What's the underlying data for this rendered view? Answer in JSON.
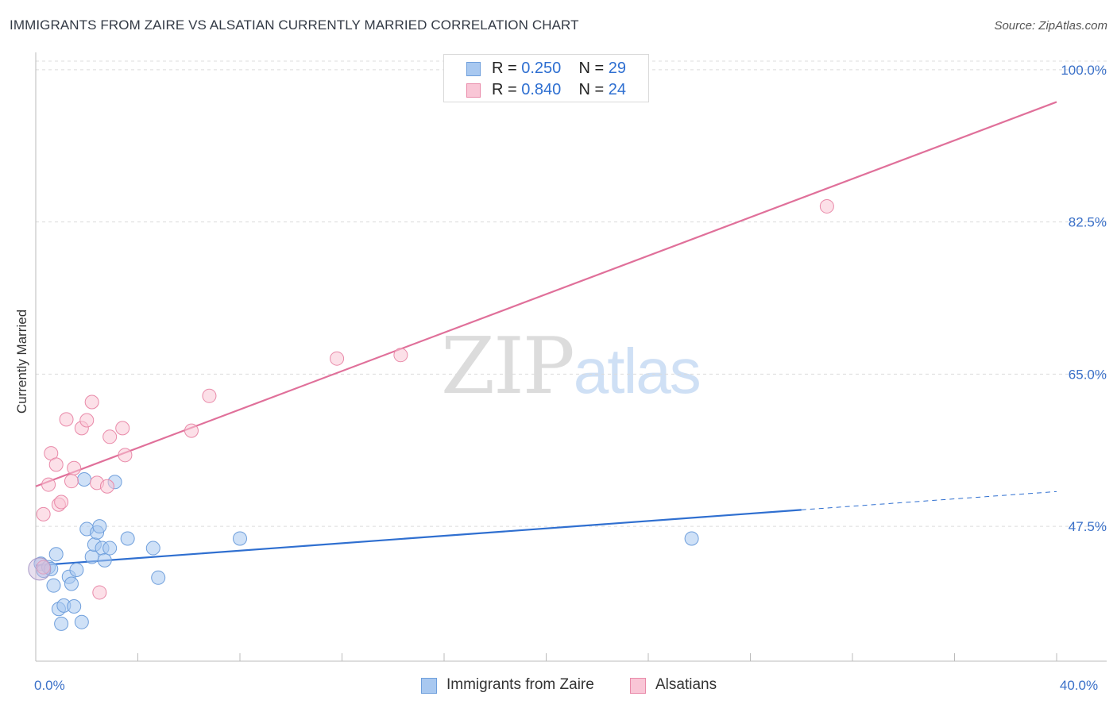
{
  "title": "IMMIGRANTS FROM ZAIRE VS ALSATIAN CURRENTLY MARRIED CORRELATION CHART",
  "source": "Source: ZipAtlas.com",
  "watermark": {
    "zip": "ZIP",
    "atlas": "atlas"
  },
  "legend_box": {
    "rows": [
      {
        "r_label": "R = ",
        "r_value": "0.250",
        "n_label": "N = ",
        "n_value": "29",
        "color": "#a8c8f0",
        "border": "#6f9fdc"
      },
      {
        "r_label": "R = ",
        "r_value": "0.840",
        "n_label": "N = ",
        "n_value": "24",
        "color": "#f9c6d6",
        "border": "#e98aa9"
      }
    ]
  },
  "bottom_legend": [
    {
      "label": "Immigrants from Zaire",
      "color": "#a8c8f0",
      "border": "#6f9fdc"
    },
    {
      "label": "Alsatians",
      "color": "#f9c6d6",
      "border": "#e98aa9"
    }
  ],
  "chart_data": {
    "type": "scatter",
    "title": "IMMIGRANTS FROM ZAIRE VS ALSATIAN CURRENTLY MARRIED CORRELATION CHART",
    "xlabel": "",
    "ylabel": "Currently Married",
    "xlim": [
      0,
      40
    ],
    "ylim": [
      32,
      102
    ],
    "x_tick_labels": [
      {
        "value": 0,
        "label": "0.0%"
      },
      {
        "value": 40,
        "label": "40.0%"
      }
    ],
    "y_tick_labels": [
      {
        "value": 100,
        "label": "100.0%"
      },
      {
        "value": 82.5,
        "label": "82.5%"
      },
      {
        "value": 65,
        "label": "65.0%"
      },
      {
        "value": 47.5,
        "label": "47.5%"
      }
    ],
    "x_minor_ticks": [
      4,
      8,
      12,
      16,
      20,
      24,
      28,
      32,
      36,
      40
    ],
    "grid": true,
    "legend_position": "top-center",
    "series": [
      {
        "name": "Immigrants from Zaire",
        "color": "#6f9fdc",
        "fill": "#a8c8f0",
        "points": [
          [
            0.2,
            43.2
          ],
          [
            0.3,
            42.4
          ],
          [
            0.5,
            42.8
          ],
          [
            0.6,
            42.6
          ],
          [
            0.7,
            40.7
          ],
          [
            0.8,
            44.3
          ],
          [
            0.9,
            38.0
          ],
          [
            1.0,
            36.3
          ],
          [
            1.1,
            38.4
          ],
          [
            1.3,
            41.7
          ],
          [
            1.4,
            40.9
          ],
          [
            1.5,
            38.3
          ],
          [
            1.6,
            42.5
          ],
          [
            1.8,
            36.5
          ],
          [
            1.9,
            52.9
          ],
          [
            2.0,
            47.2
          ],
          [
            2.2,
            44.0
          ],
          [
            2.3,
            45.4
          ],
          [
            2.4,
            46.8
          ],
          [
            2.5,
            47.5
          ],
          [
            2.6,
            45.0
          ],
          [
            2.7,
            43.6
          ],
          [
            2.9,
            45.0
          ],
          [
            3.1,
            52.6
          ],
          [
            3.6,
            46.1
          ],
          [
            4.6,
            45.0
          ],
          [
            4.8,
            41.6
          ],
          [
            8.0,
            46.1
          ],
          [
            25.7,
            46.1
          ]
        ],
        "trend": {
          "x": [
            0,
            30
          ],
          "y": [
            43.0,
            49.4
          ],
          "dashed_to": [
            40,
            51.5
          ]
        }
      },
      {
        "name": "Alsatians",
        "color": "#e98aa9",
        "fill": "#f9c6d6",
        "points": [
          [
            0.3,
            42.8
          ],
          [
            0.3,
            48.9
          ],
          [
            0.5,
            52.3
          ],
          [
            0.6,
            55.9
          ],
          [
            0.8,
            54.6
          ],
          [
            0.9,
            50.0
          ],
          [
            1.0,
            50.3
          ],
          [
            1.2,
            59.8
          ],
          [
            1.4,
            52.7
          ],
          [
            1.5,
            54.2
          ],
          [
            1.8,
            58.8
          ],
          [
            2.0,
            59.7
          ],
          [
            2.2,
            61.8
          ],
          [
            2.4,
            52.5
          ],
          [
            2.5,
            39.9
          ],
          [
            2.8,
            52.1
          ],
          [
            2.9,
            57.8
          ],
          [
            3.4,
            58.8
          ],
          [
            3.5,
            55.7
          ],
          [
            6.1,
            58.5
          ],
          [
            6.8,
            62.5
          ],
          [
            11.8,
            66.8
          ],
          [
            14.3,
            67.2
          ],
          [
            31.0,
            84.3
          ]
        ],
        "trend": {
          "x": [
            0,
            40
          ],
          "y": [
            52.1,
            96.3
          ]
        }
      }
    ]
  }
}
